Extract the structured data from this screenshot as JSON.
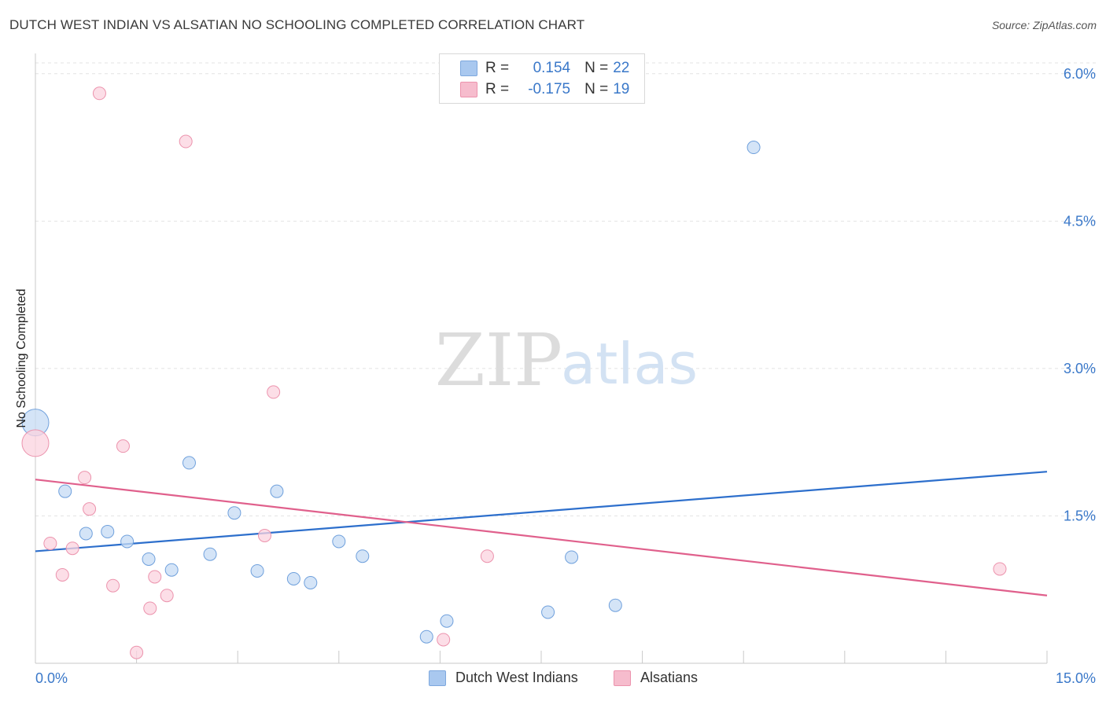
{
  "title": "DUTCH WEST INDIAN VS ALSATIAN NO SCHOOLING COMPLETED CORRELATION CHART",
  "source": "Source: ZipAtlas.com",
  "watermark": {
    "zip": "ZIP",
    "atlas": "atlas"
  },
  "legend": {
    "rows": [
      {
        "r_label": "R =",
        "r_value": "0.154",
        "n_label": "N =",
        "n_value": "22",
        "color": "#a9c8ef",
        "border": "#7ea8de"
      },
      {
        "r_label": "R =",
        "r_value": "-0.175",
        "n_label": "N =",
        "n_value": "19",
        "color": "#f6bccd",
        "border": "#ec93ad"
      }
    ]
  },
  "bottom_legend": [
    {
      "label": "Dutch West Indians",
      "color": "#a9c8ef",
      "border": "#7ea8de"
    },
    {
      "label": "Alsatians",
      "color": "#f6bccd",
      "border": "#ec93ad"
    }
  ],
  "chart_data": {
    "type": "scatter",
    "title": "DUTCH WEST INDIAN VS ALSATIAN NO SCHOOLING COMPLETED CORRELATION CHART",
    "xlabel": "",
    "ylabel": "No Schooling Completed",
    "xlim": [
      0,
      15
    ],
    "ylim": [
      0,
      6.15
    ],
    "x_tick_labels": [
      "0.0%",
      "15.0%"
    ],
    "y_ticks": [
      1.5,
      3.0,
      4.5,
      6.0
    ],
    "y_tick_labels": [
      "1.5%",
      "3.0%",
      "4.5%",
      "6.0%"
    ],
    "grid": true,
    "legend_position": "top-center",
    "series": [
      {
        "name": "Dutch West Indians",
        "color": "#6fa0dc",
        "fill": "#c6dbf4",
        "line_color": "#2d6fcc",
        "trend": [
          [
            0,
            1.14
          ],
          [
            15,
            1.95
          ]
        ],
        "points": [
          {
            "x": 0.0,
            "y": 2.45,
            "big": true
          },
          {
            "x": 0.44,
            "y": 1.75
          },
          {
            "x": 0.75,
            "y": 1.32
          },
          {
            "x": 1.07,
            "y": 1.34
          },
          {
            "x": 1.36,
            "y": 1.24
          },
          {
            "x": 1.68,
            "y": 1.06
          },
          {
            "x": 2.02,
            "y": 0.95
          },
          {
            "x": 2.28,
            "y": 2.04
          },
          {
            "x": 2.59,
            "y": 1.11
          },
          {
            "x": 2.95,
            "y": 1.53
          },
          {
            "x": 3.29,
            "y": 0.94
          },
          {
            "x": 3.58,
            "y": 1.75
          },
          {
            "x": 3.83,
            "y": 0.86
          },
          {
            "x": 4.08,
            "y": 0.82
          },
          {
            "x": 4.5,
            "y": 1.24
          },
          {
            "x": 4.85,
            "y": 1.09
          },
          {
            "x": 5.8,
            "y": 0.27
          },
          {
            "x": 6.1,
            "y": 0.43
          },
          {
            "x": 7.6,
            "y": 0.52
          },
          {
            "x": 7.95,
            "y": 1.08
          },
          {
            "x": 8.6,
            "y": 0.59
          },
          {
            "x": 10.65,
            "y": 5.25
          }
        ]
      },
      {
        "name": "Alsatians",
        "color": "#ec93ad",
        "fill": "#fbd3df",
        "line_color": "#e0608c",
        "trend": [
          [
            0,
            1.87
          ],
          [
            15,
            0.69
          ]
        ],
        "points": [
          {
            "x": 0.0,
            "y": 2.24,
            "big": true
          },
          {
            "x": 0.22,
            "y": 1.22
          },
          {
            "x": 0.4,
            "y": 0.9
          },
          {
            "x": 0.55,
            "y": 1.17
          },
          {
            "x": 0.73,
            "y": 1.89
          },
          {
            "x": 0.8,
            "y": 1.57
          },
          {
            "x": 0.95,
            "y": 5.8
          },
          {
            "x": 1.15,
            "y": 0.79
          },
          {
            "x": 1.3,
            "y": 2.21
          },
          {
            "x": 1.5,
            "y": 0.11
          },
          {
            "x": 1.7,
            "y": 0.56
          },
          {
            "x": 1.77,
            "y": 0.88
          },
          {
            "x": 1.95,
            "y": 0.69
          },
          {
            "x": 2.23,
            "y": 5.31
          },
          {
            "x": 3.4,
            "y": 1.3
          },
          {
            "x": 3.53,
            "y": 2.76
          },
          {
            "x": 6.05,
            "y": 0.24
          },
          {
            "x": 6.7,
            "y": 1.09
          },
          {
            "x": 14.3,
            "y": 0.96
          }
        ]
      }
    ]
  }
}
